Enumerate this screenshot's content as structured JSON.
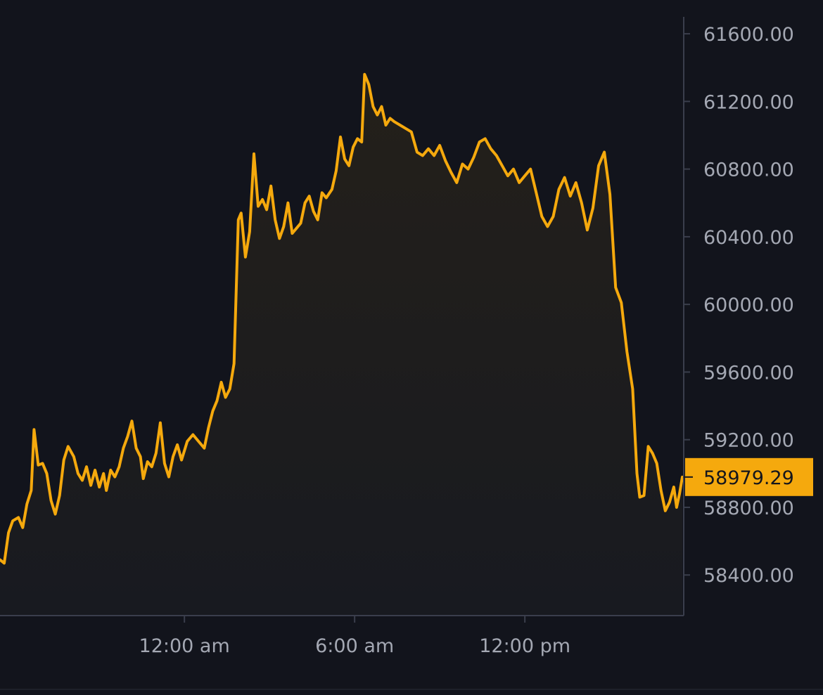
{
  "chart_data": {
    "type": "area",
    "colors": {
      "background": "#12141c",
      "line": "#f5a90d",
      "axis": "#3a3e4c",
      "tick_text": "#a4a8b3",
      "price_tag": "#f5a90d",
      "price_tag_text": "#15161c",
      "area_fill": "#1f1d1d"
    },
    "y_axis": {
      "position": "right",
      "range": [
        58160,
        61700
      ],
      "ticks": [
        61600,
        61200,
        60800,
        60400,
        60000,
        59600,
        59200,
        58800,
        58400
      ],
      "tick_labels": [
        "61600.00",
        "61200.00",
        "60800.00",
        "60400.00",
        "60000.00",
        "59600.00",
        "59200.00",
        "58800.00",
        "58400.00"
      ]
    },
    "x_axis": {
      "unit": "hours from 12:00 am",
      "range": [
        -6.5,
        17.6
      ],
      "ticks": [
        0,
        6,
        12
      ],
      "tick_labels": [
        "12:00 am",
        "6:00 am",
        "12:00 pm"
      ]
    },
    "current_price": {
      "value": 58979.29,
      "label": "58979.29"
    },
    "series": [
      {
        "values": [
          [
            -6.5,
            58490
          ],
          [
            -6.35,
            58470
          ],
          [
            -6.2,
            58650
          ],
          [
            -6.05,
            58720
          ],
          [
            -5.85,
            58740
          ],
          [
            -5.7,
            58680
          ],
          [
            -5.55,
            58820
          ],
          [
            -5.4,
            58900
          ],
          [
            -5.3,
            59260
          ],
          [
            -5.15,
            59050
          ],
          [
            -5.0,
            59060
          ],
          [
            -4.85,
            59000
          ],
          [
            -4.7,
            58840
          ],
          [
            -4.55,
            58760
          ],
          [
            -4.4,
            58870
          ],
          [
            -4.25,
            59080
          ],
          [
            -4.1,
            59160
          ],
          [
            -3.9,
            59100
          ],
          [
            -3.75,
            59000
          ],
          [
            -3.6,
            58960
          ],
          [
            -3.45,
            59040
          ],
          [
            -3.3,
            58930
          ],
          [
            -3.15,
            59020
          ],
          [
            -3.0,
            58920
          ],
          [
            -2.85,
            59000
          ],
          [
            -2.75,
            58900
          ],
          [
            -2.6,
            59020
          ],
          [
            -2.45,
            58980
          ],
          [
            -2.3,
            59040
          ],
          [
            -2.15,
            59150
          ],
          [
            -2.0,
            59220
          ],
          [
            -1.85,
            59310
          ],
          [
            -1.7,
            59150
          ],
          [
            -1.55,
            59100
          ],
          [
            -1.45,
            58970
          ],
          [
            -1.3,
            59070
          ],
          [
            -1.15,
            59040
          ],
          [
            -1.0,
            59120
          ],
          [
            -0.85,
            59300
          ],
          [
            -0.7,
            59060
          ],
          [
            -0.55,
            58980
          ],
          [
            -0.4,
            59100
          ],
          [
            -0.25,
            59170
          ],
          [
            -0.1,
            59080
          ],
          [
            0.1,
            59190
          ],
          [
            0.3,
            59230
          ],
          [
            0.5,
            59190
          ],
          [
            0.7,
            59150
          ],
          [
            0.85,
            59270
          ],
          [
            1.0,
            59370
          ],
          [
            1.15,
            59430
          ],
          [
            1.3,
            59540
          ],
          [
            1.45,
            59450
          ],
          [
            1.6,
            59500
          ],
          [
            1.75,
            59650
          ],
          [
            1.9,
            60500
          ],
          [
            2.0,
            60540
          ],
          [
            2.15,
            60280
          ],
          [
            2.3,
            60430
          ],
          [
            2.45,
            60890
          ],
          [
            2.6,
            60580
          ],
          [
            2.75,
            60620
          ],
          [
            2.9,
            60560
          ],
          [
            3.05,
            60700
          ],
          [
            3.2,
            60500
          ],
          [
            3.35,
            60390
          ],
          [
            3.5,
            60460
          ],
          [
            3.65,
            60600
          ],
          [
            3.8,
            60420
          ],
          [
            3.95,
            60450
          ],
          [
            4.1,
            60480
          ],
          [
            4.25,
            60600
          ],
          [
            4.4,
            60640
          ],
          [
            4.55,
            60550
          ],
          [
            4.7,
            60500
          ],
          [
            4.85,
            60660
          ],
          [
            5.0,
            60630
          ],
          [
            5.2,
            60680
          ],
          [
            5.35,
            60790
          ],
          [
            5.5,
            60990
          ],
          [
            5.65,
            60860
          ],
          [
            5.8,
            60820
          ],
          [
            5.95,
            60930
          ],
          [
            6.1,
            60980
          ],
          [
            6.25,
            60960
          ],
          [
            6.35,
            61360
          ],
          [
            6.5,
            61300
          ],
          [
            6.65,
            61170
          ],
          [
            6.8,
            61120
          ],
          [
            6.95,
            61170
          ],
          [
            7.1,
            61060
          ],
          [
            7.25,
            61100
          ],
          [
            7.4,
            61080
          ],
          [
            7.6,
            61060
          ],
          [
            7.8,
            61040
          ],
          [
            8.0,
            61020
          ],
          [
            8.2,
            60900
          ],
          [
            8.4,
            60880
          ],
          [
            8.6,
            60920
          ],
          [
            8.8,
            60880
          ],
          [
            9.0,
            60940
          ],
          [
            9.2,
            60850
          ],
          [
            9.4,
            60780
          ],
          [
            9.6,
            60720
          ],
          [
            9.8,
            60830
          ],
          [
            10.0,
            60800
          ],
          [
            10.2,
            60870
          ],
          [
            10.4,
            60960
          ],
          [
            10.6,
            60980
          ],
          [
            10.8,
            60920
          ],
          [
            11.0,
            60880
          ],
          [
            11.2,
            60820
          ],
          [
            11.4,
            60760
          ],
          [
            11.6,
            60800
          ],
          [
            11.8,
            60720
          ],
          [
            12.0,
            60760
          ],
          [
            12.2,
            60800
          ],
          [
            12.4,
            60660
          ],
          [
            12.6,
            60520
          ],
          [
            12.8,
            60460
          ],
          [
            13.0,
            60520
          ],
          [
            13.2,
            60680
          ],
          [
            13.4,
            60750
          ],
          [
            13.6,
            60640
          ],
          [
            13.8,
            60720
          ],
          [
            14.0,
            60600
          ],
          [
            14.2,
            60440
          ],
          [
            14.4,
            60570
          ],
          [
            14.6,
            60820
          ],
          [
            14.8,
            60900
          ],
          [
            15.0,
            60650
          ],
          [
            15.2,
            60100
          ],
          [
            15.4,
            60010
          ],
          [
            15.6,
            59720
          ],
          [
            15.8,
            59500
          ],
          [
            15.95,
            59000
          ],
          [
            16.05,
            58860
          ],
          [
            16.2,
            58870
          ],
          [
            16.35,
            59160
          ],
          [
            16.5,
            59120
          ],
          [
            16.65,
            59060
          ],
          [
            16.8,
            58900
          ],
          [
            16.95,
            58780
          ],
          [
            17.1,
            58830
          ],
          [
            17.25,
            58920
          ],
          [
            17.35,
            58800
          ],
          [
            17.45,
            58880
          ],
          [
            17.55,
            58979
          ]
        ]
      }
    ]
  }
}
